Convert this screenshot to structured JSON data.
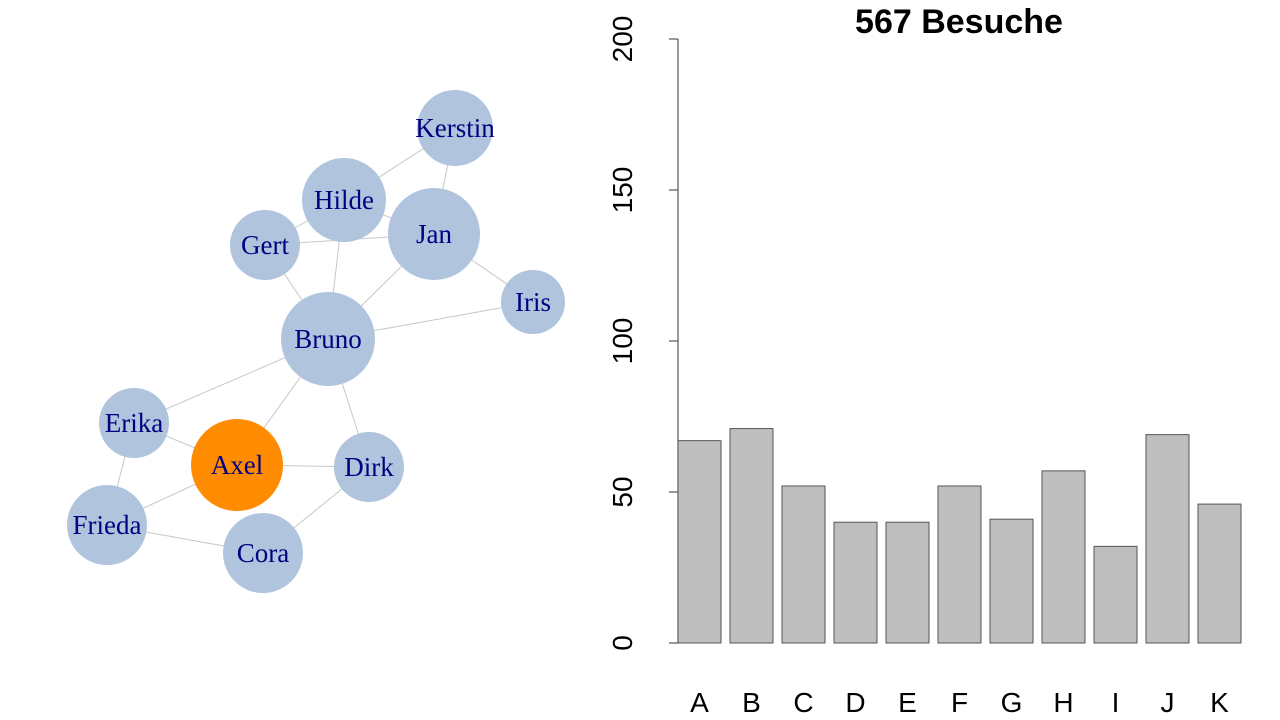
{
  "network": {
    "nodes": [
      {
        "id": "Kerstin",
        "label": "Kerstin",
        "color": "#b0c4de",
        "selected": false
      },
      {
        "id": "Hilde",
        "label": "Hilde",
        "color": "#b0c4de",
        "selected": false
      },
      {
        "id": "Jan",
        "label": "Jan",
        "color": "#b0c4de",
        "selected": false
      },
      {
        "id": "Gert",
        "label": "Gert",
        "color": "#b0c4de",
        "selected": false
      },
      {
        "id": "Iris",
        "label": "Iris",
        "color": "#b0c4de",
        "selected": false
      },
      {
        "id": "Bruno",
        "label": "Bruno",
        "color": "#b0c4de",
        "selected": false
      },
      {
        "id": "Erika",
        "label": "Erika",
        "color": "#b0c4de",
        "selected": false
      },
      {
        "id": "Axel",
        "label": "Axel",
        "color": "#ff8c00",
        "selected": true
      },
      {
        "id": "Dirk",
        "label": "Dirk",
        "color": "#b0c4de",
        "selected": false
      },
      {
        "id": "Frieda",
        "label": "Frieda",
        "color": "#b0c4de",
        "selected": false
      },
      {
        "id": "Cora",
        "label": "Cora",
        "color": "#b0c4de",
        "selected": false
      }
    ],
    "edges": [
      [
        "Kerstin",
        "Hilde"
      ],
      [
        "Kerstin",
        "Jan"
      ],
      [
        "Hilde",
        "Jan"
      ],
      [
        "Hilde",
        "Gert"
      ],
      [
        "Hilde",
        "Bruno"
      ],
      [
        "Gert",
        "Jan"
      ],
      [
        "Gert",
        "Bruno"
      ],
      [
        "Jan",
        "Iris"
      ],
      [
        "Jan",
        "Bruno"
      ],
      [
        "Bruno",
        "Iris"
      ],
      [
        "Bruno",
        "Erika"
      ],
      [
        "Bruno",
        "Axel"
      ],
      [
        "Bruno",
        "Dirk"
      ],
      [
        "Erika",
        "Axel"
      ],
      [
        "Erika",
        "Frieda"
      ],
      [
        "Axel",
        "Dirk"
      ],
      [
        "Axel",
        "Frieda"
      ],
      [
        "Frieda",
        "Cora"
      ],
      [
        "Cora",
        "Dirk"
      ]
    ],
    "edge_color": "#c8c8c8",
    "label_color": "#000080"
  },
  "chart_data": {
    "type": "bar",
    "title": "567 Besuche",
    "categories": [
      "A",
      "B",
      "C",
      "D",
      "E",
      "F",
      "G",
      "H",
      "I",
      "J",
      "K"
    ],
    "values": [
      67,
      71,
      52,
      40,
      40,
      52,
      41,
      57,
      32,
      69,
      46
    ],
    "ylim": [
      0,
      200
    ],
    "yticks": [
      "0",
      "50",
      "100",
      "150",
      "200"
    ],
    "xlabel": "",
    "ylabel": "",
    "bar_color": "#bebebe",
    "bar_border": "#555555",
    "grid": false
  }
}
